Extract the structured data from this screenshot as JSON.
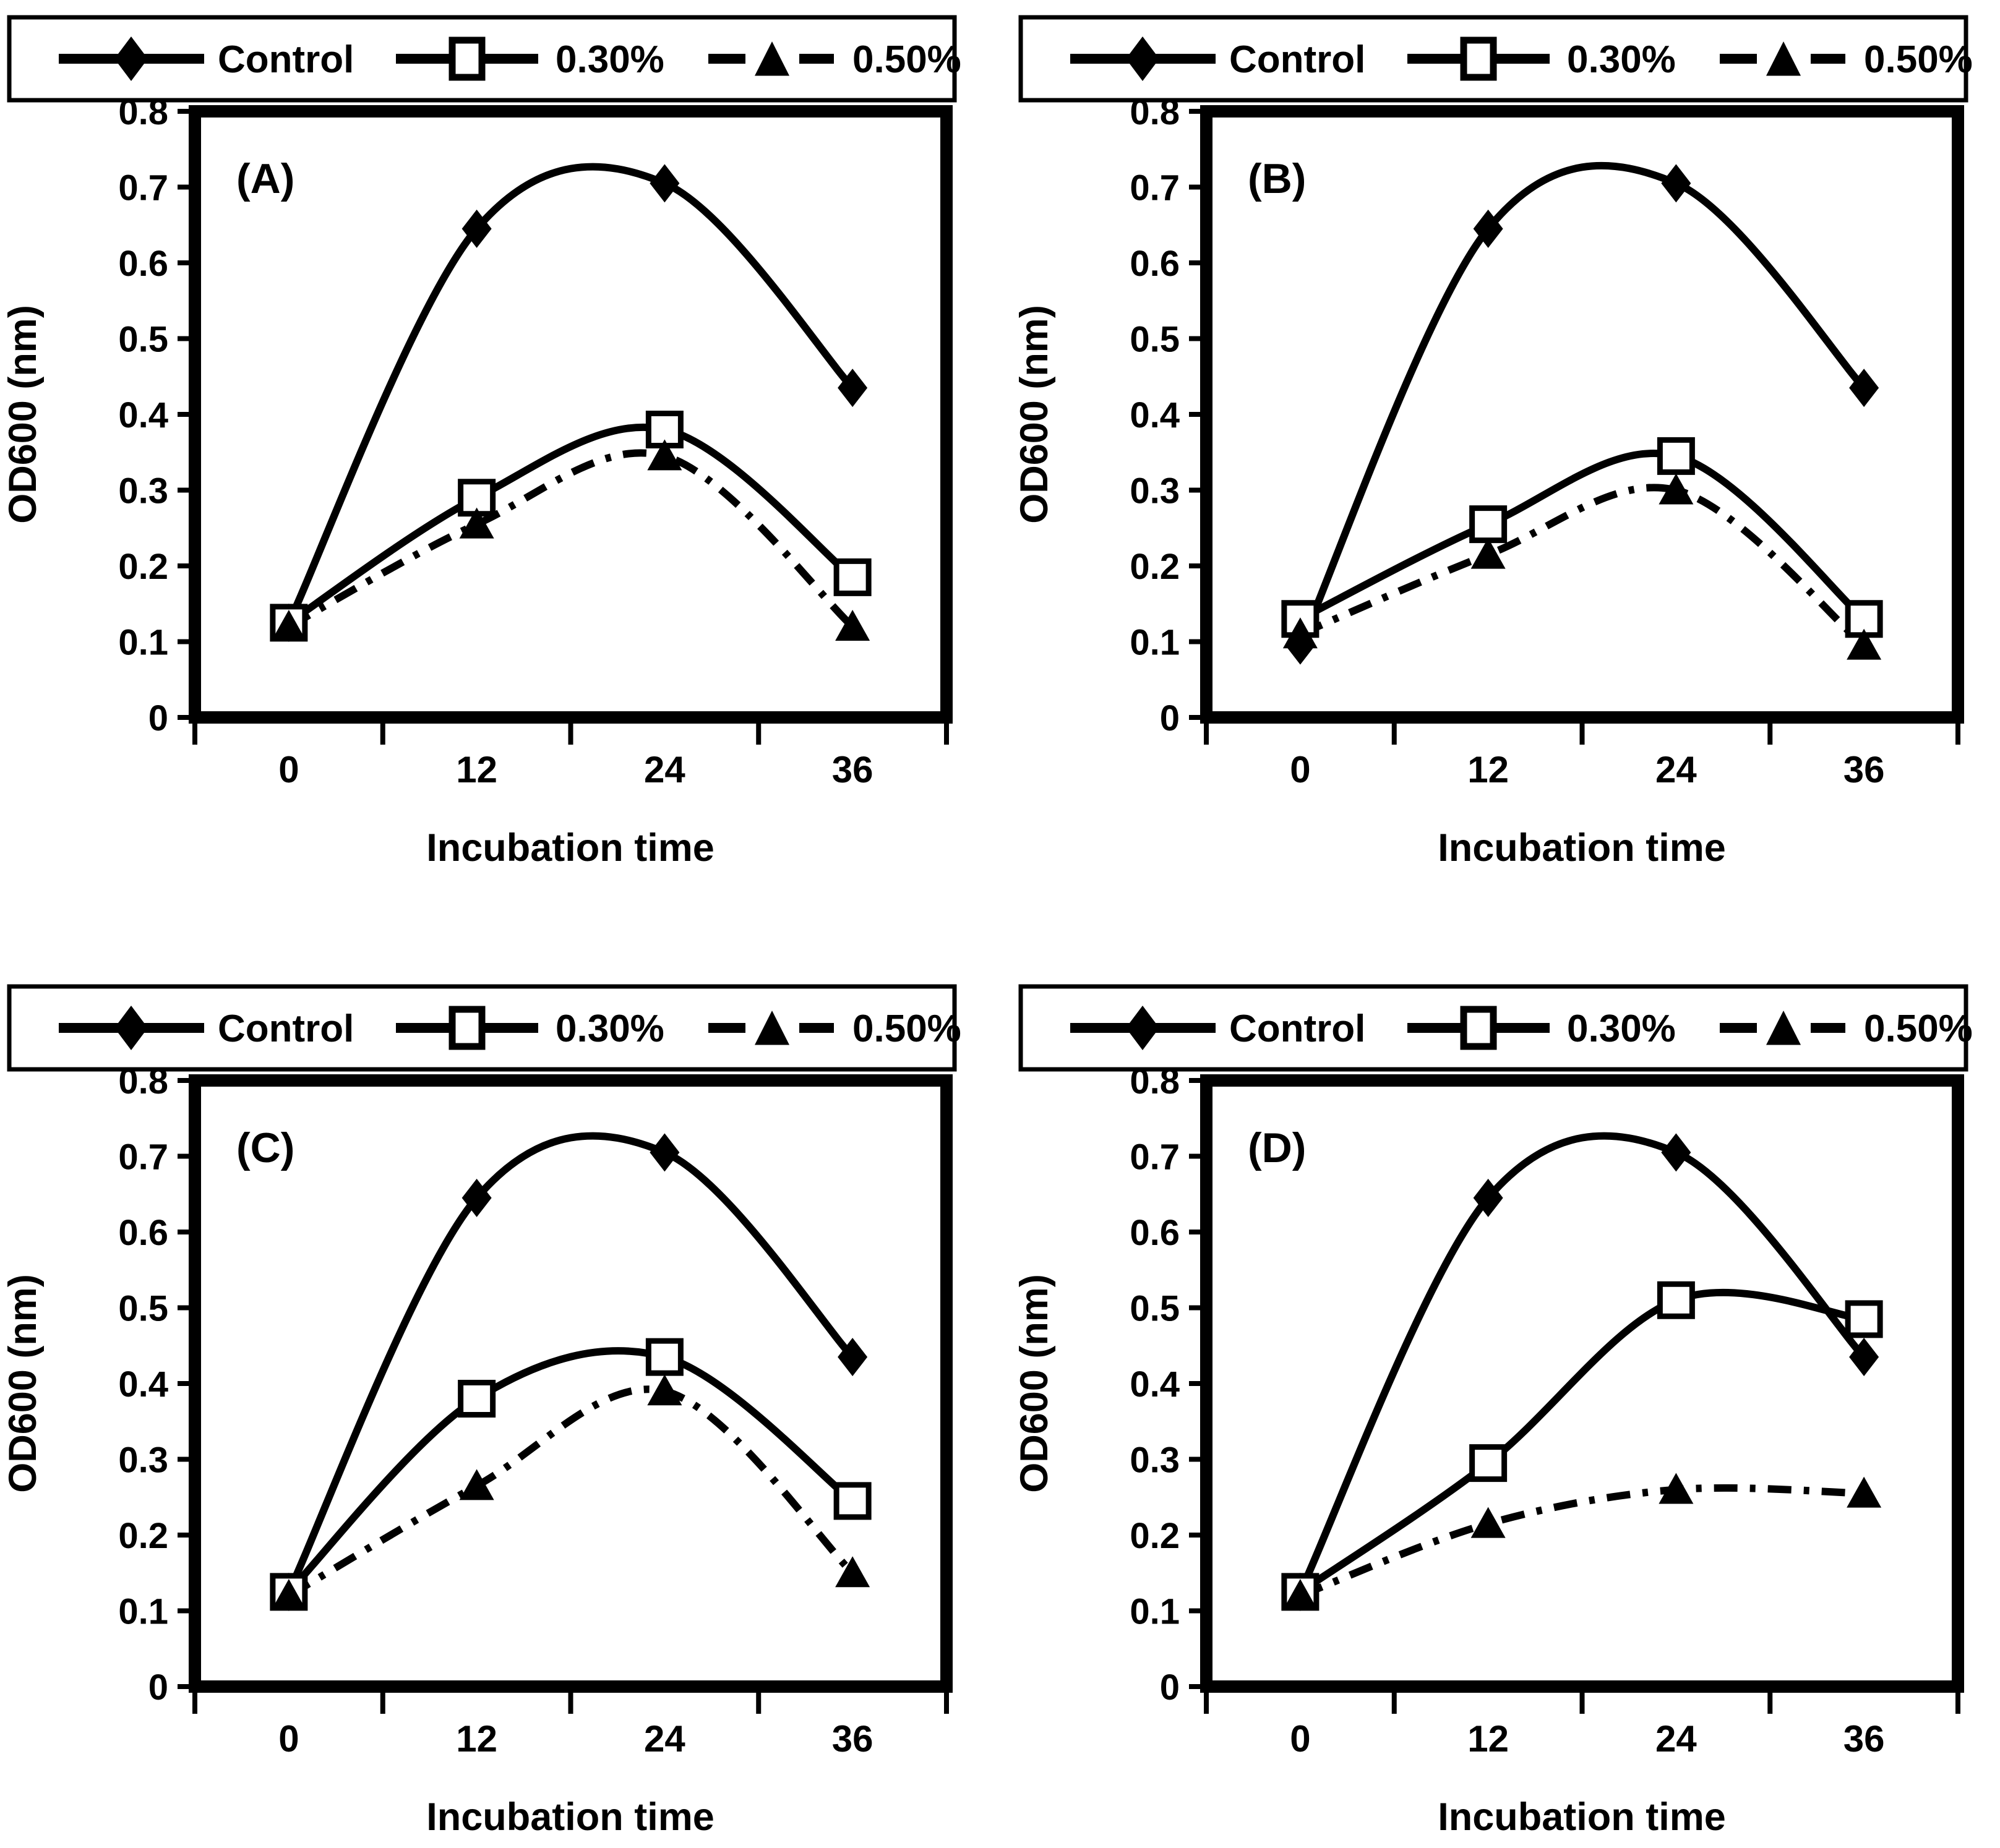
{
  "figure": {
    "background_color": "#ffffff",
    "ink_color": "#000000"
  },
  "legend": {
    "items": [
      {
        "label": "Control",
        "marker": "filled-diamond-icon",
        "line_style": "solid"
      },
      {
        "label": "0.30%",
        "marker": "open-square-icon",
        "line_style": "solid"
      },
      {
        "label": "0.50%",
        "marker": "filled-triangle-icon",
        "line_style": "dash-dot"
      }
    ]
  },
  "axes": {
    "xlabel": "Incubation time",
    "ylabel": "OD600 (nm)",
    "x_ticklabels": [
      "0",
      "12",
      "24",
      "36"
    ],
    "y_ticklabels": [
      "0",
      "0.1",
      "0.2",
      "0.3",
      "0.4",
      "0.5",
      "0.6",
      "0.7",
      "0.8"
    ],
    "ylim": [
      0,
      0.8
    ],
    "grid": "off",
    "legend_position": "top-boxed"
  },
  "chart_data": [
    {
      "type": "line",
      "panel_label": "(A)",
      "x": [
        0,
        12,
        24,
        36
      ],
      "xlabel": "Incubation time",
      "ylabel": "OD600 (nm)",
      "ylim": [
        0,
        0.8
      ],
      "series": [
        {
          "name": "Control",
          "marker": "filled-diamond",
          "line_style": "solid",
          "values": [
            0.125,
            0.645,
            0.705,
            0.435
          ]
        },
        {
          "name": "0.30%",
          "marker": "open-square",
          "line_style": "solid",
          "values": [
            0.125,
            0.29,
            0.38,
            0.185
          ]
        },
        {
          "name": "0.50%",
          "marker": "filled-triangle",
          "line_style": "dash-dot",
          "values": [
            0.12,
            0.255,
            0.345,
            0.12
          ]
        }
      ]
    },
    {
      "type": "line",
      "panel_label": "(B)",
      "x": [
        0,
        12,
        24,
        36
      ],
      "xlabel": "Incubation time",
      "ylabel": "OD600 (nm)",
      "ylim": [
        0,
        0.8
      ],
      "series": [
        {
          "name": "Control",
          "marker": "filled-diamond",
          "line_style": "solid",
          "values": [
            0.095,
            0.645,
            0.705,
            0.435
          ]
        },
        {
          "name": "0.30%",
          "marker": "open-square",
          "line_style": "solid",
          "values": [
            0.13,
            0.255,
            0.345,
            0.13
          ]
        },
        {
          "name": "0.50%",
          "marker": "filled-triangle",
          "line_style": "dash-dot",
          "values": [
            0.11,
            0.215,
            0.3,
            0.095
          ]
        }
      ]
    },
    {
      "type": "line",
      "panel_label": "(C)",
      "x": [
        0,
        12,
        24,
        36
      ],
      "xlabel": "Incubation time",
      "ylabel": "OD600 (nm)",
      "ylim": [
        0,
        0.8
      ],
      "series": [
        {
          "name": "Control",
          "marker": "filled-diamond",
          "line_style": "solid",
          "values": [
            0.125,
            0.645,
            0.705,
            0.435
          ]
        },
        {
          "name": "0.30%",
          "marker": "open-square",
          "line_style": "solid",
          "values": [
            0.125,
            0.38,
            0.435,
            0.245
          ]
        },
        {
          "name": "0.50%",
          "marker": "filled-triangle",
          "line_style": "dash-dot",
          "values": [
            0.12,
            0.265,
            0.39,
            0.15
          ]
        }
      ]
    },
    {
      "type": "line",
      "panel_label": "(D)",
      "x": [
        0,
        12,
        24,
        36
      ],
      "xlabel": "Incubation time",
      "ylabel": "OD600 (nm)",
      "ylim": [
        0,
        0.8
      ],
      "series": [
        {
          "name": "Control",
          "marker": "filled-diamond",
          "line_style": "solid",
          "values": [
            0.125,
            0.645,
            0.705,
            0.435
          ]
        },
        {
          "name": "0.30%",
          "marker": "open-square",
          "line_style": "solid",
          "values": [
            0.125,
            0.295,
            0.51,
            0.485
          ]
        },
        {
          "name": "0.50%",
          "marker": "filled-triangle",
          "line_style": "dash-dot",
          "values": [
            0.12,
            0.215,
            0.26,
            0.255
          ]
        }
      ]
    }
  ]
}
